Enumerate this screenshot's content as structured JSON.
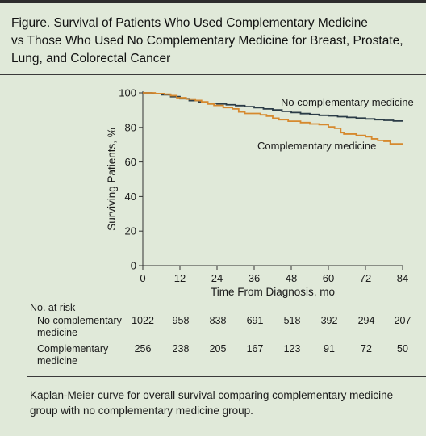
{
  "figure": {
    "title_lines": [
      "Figure. Survival of Patients Who Used Complementary Medicine",
      "vs Those Who Used No Complementary Medicine for Breast, Prostate,",
      "Lung, and Colorectal Cancer"
    ],
    "caption_lines": [
      "Kaplan-Meier curve for overall survival comparing complementary medicine",
      "group with no complementary medicine group."
    ]
  },
  "colors": {
    "background": "#e0e9d9",
    "no_cm_line": "#2b3c47",
    "cm_line": "#d6892e",
    "axis": "#333333"
  },
  "chart_data": {
    "type": "line",
    "title": "",
    "xlabel": "Time From Diagnosis, mo",
    "ylabel": "Surviving Patients, %",
    "xlim": [
      0,
      84
    ],
    "ylim": [
      0,
      100
    ],
    "x_ticks": [
      0,
      12,
      24,
      36,
      48,
      60,
      72,
      84
    ],
    "y_ticks": [
      0,
      20,
      40,
      60,
      80,
      100
    ],
    "grid": false,
    "series": [
      {
        "name": "No complementary medicine",
        "step": true,
        "x": [
          0,
          3,
          6,
          9,
          12,
          15,
          18,
          21,
          24,
          27,
          30,
          33,
          36,
          39,
          42,
          45,
          48,
          51,
          54,
          57,
          60,
          63,
          66,
          69,
          72,
          75,
          78,
          81,
          84
        ],
        "y": [
          100,
          99.5,
          98.9,
          97.8,
          96.6,
          95.5,
          94.7,
          94.0,
          93.6,
          93.1,
          92.6,
          92.0,
          91.4,
          90.7,
          90.1,
          89.3,
          88.6,
          88.0,
          87.5,
          87.0,
          86.7,
          86.2,
          85.8,
          85.4,
          84.9,
          84.5,
          84.1,
          83.7,
          83.6
        ]
      },
      {
        "name": "Complementary medicine",
        "step": true,
        "x": [
          0,
          4,
          7,
          9,
          11,
          14,
          17,
          19,
          21,
          23,
          26,
          29,
          31,
          33,
          38,
          40,
          42,
          44,
          47,
          51,
          54,
          57,
          60,
          62,
          64,
          65,
          69,
          72,
          74,
          76,
          78,
          80,
          84
        ],
        "y": [
          100,
          99.6,
          99.2,
          98.4,
          97.2,
          96.4,
          95.6,
          94.8,
          93.5,
          92.7,
          91.5,
          90.7,
          89.0,
          88.1,
          87.3,
          86.5,
          85.3,
          84.5,
          83.6,
          82.8,
          82.0,
          81.6,
          80.3,
          79.5,
          77.0,
          76.2,
          75.4,
          74.6,
          73.4,
          72.5,
          72.0,
          70.5,
          70.5
        ]
      }
    ],
    "annotations": [
      {
        "text": "No complementary medicine",
        "series": 0
      },
      {
        "text": "Complementary medicine",
        "series": 1
      }
    ]
  },
  "at_risk": {
    "heading": "No. at risk",
    "rows": [
      {
        "label_lines": [
          "No complementary",
          "medicine"
        ],
        "values": [
          "1022",
          "958",
          "838",
          "691",
          "518",
          "392",
          "294",
          "207"
        ]
      },
      {
        "label_lines": [
          "Complementary",
          "medicine"
        ],
        "values": [
          "256",
          "238",
          "205",
          "167",
          "123",
          "91",
          "72",
          "50"
        ]
      }
    ]
  }
}
